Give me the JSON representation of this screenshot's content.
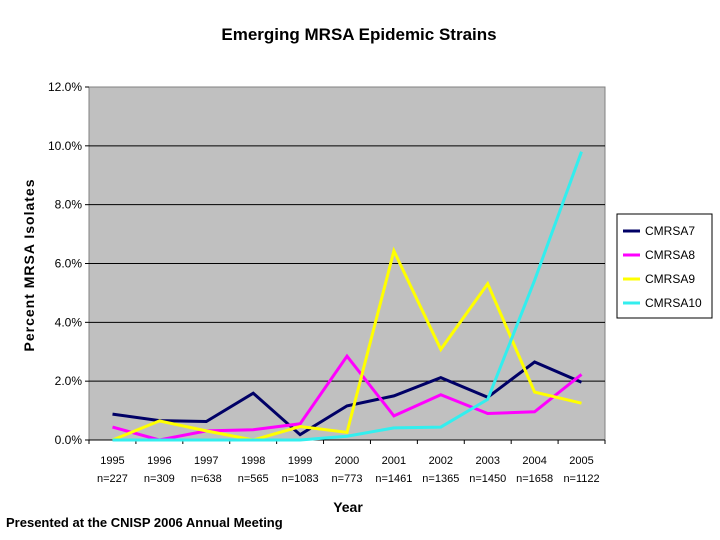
{
  "chart_data": {
    "type": "line",
    "title": "Emerging MRSA Epidemic Strains",
    "xlabel": "Year",
    "ylabel": "Percent MRSA Isolates",
    "ylim": [
      0,
      12
    ],
    "y_ticks": [
      0,
      2,
      4,
      6,
      8,
      10,
      12
    ],
    "y_tick_labels": [
      "0.0%",
      "2.0%",
      "4.0%",
      "6.0%",
      "8.0%",
      "10.0%",
      "12.0%"
    ],
    "grid": true,
    "legend_position": "right",
    "categories": [
      "1995",
      "1996",
      "1997",
      "1998",
      "1999",
      "2000",
      "2001",
      "2002",
      "2003",
      "2004",
      "2005"
    ],
    "category_n": [
      "n=227",
      "n=309",
      "n=638",
      "n=565",
      "n=1083",
      "n=773",
      "n=1461",
      "n=1365",
      "n=1450",
      "n=1658",
      "n=1122"
    ],
    "series": [
      {
        "name": "CMRSA7",
        "color": "#000066",
        "values": [
          0.88,
          0.66,
          0.63,
          1.59,
          0.18,
          1.16,
          1.5,
          2.12,
          1.45,
          2.65,
          1.96
        ]
      },
      {
        "name": "CMRSA8",
        "color": "#ff00ff",
        "values": [
          0.44,
          0.0,
          0.31,
          0.35,
          0.55,
          2.85,
          0.82,
          1.54,
          0.9,
          0.96,
          2.23
        ]
      },
      {
        "name": "CMRSA9",
        "color": "#ffff00",
        "values": [
          0.0,
          0.65,
          0.31,
          0.0,
          0.46,
          0.26,
          6.43,
          3.08,
          5.31,
          1.63,
          1.25
        ]
      },
      {
        "name": "CMRSA10",
        "color": "#33eeee",
        "values": [
          0.0,
          0.0,
          0.0,
          0.0,
          0.0,
          0.13,
          0.41,
          0.44,
          1.38,
          5.43,
          9.8
        ]
      }
    ]
  },
  "footer": {
    "text": "Presented at the CNISP 2006 Annual Meeting"
  }
}
